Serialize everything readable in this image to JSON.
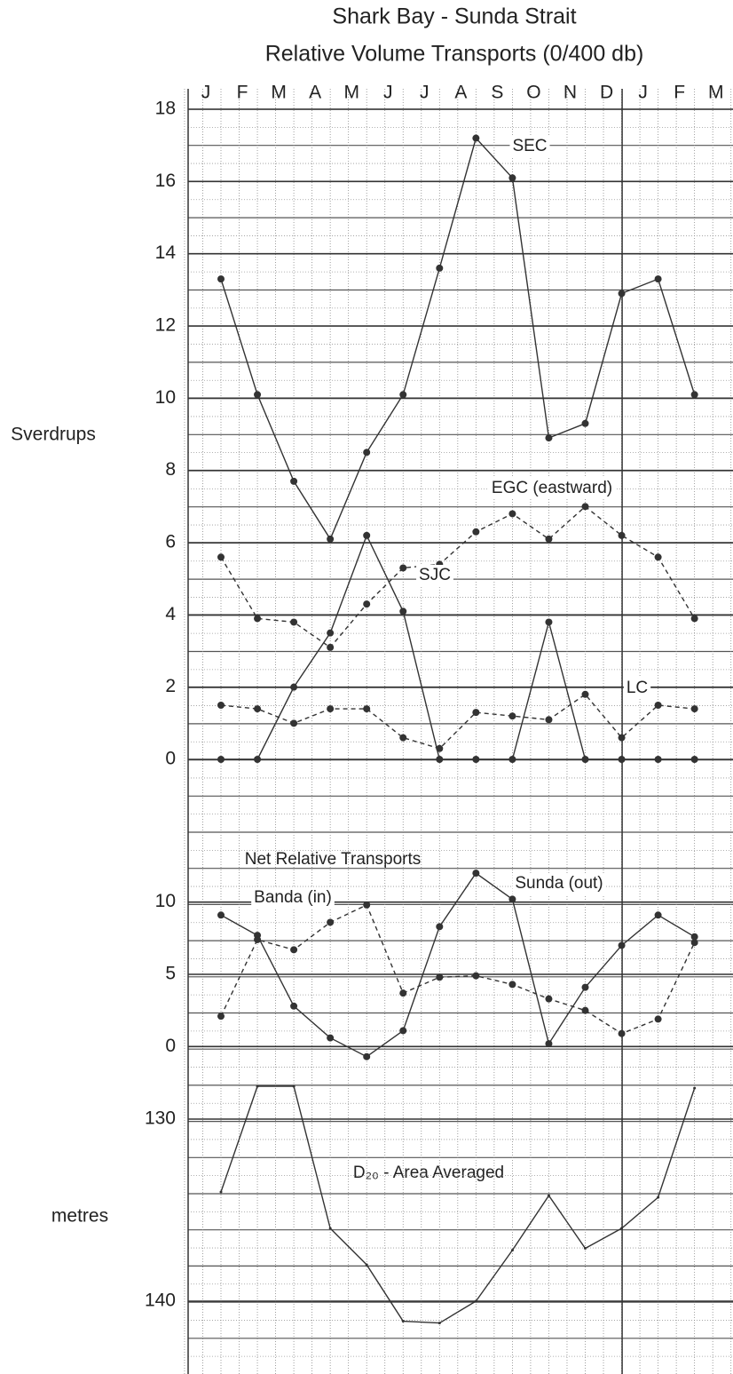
{
  "chart_data": [
    {
      "type": "line",
      "title": "Shark Bay - Sunda Strait",
      "subtitle": "Relative Volume Transports (0/400 db)",
      "y_label": "Sverdrups",
      "categories": [
        "J",
        "F",
        "M",
        "A",
        "M",
        "J",
        "J",
        "A",
        "S",
        "O",
        "N",
        "D",
        "J",
        "F",
        "M"
      ],
      "ylim": [
        -3,
        18
      ],
      "yticks": [
        0,
        2,
        4,
        6,
        8,
        10,
        12,
        14,
        16,
        18
      ],
      "grid": true,
      "series": [
        {
          "name": "SEC",
          "color": "#333333",
          "dashed": false,
          "markers": true,
          "values": [
            13.3,
            10.1,
            7.7,
            6.1,
            8.5,
            10.1,
            13.6,
            17.2,
            16.1,
            8.9,
            9.3,
            12.9,
            13.3,
            10.1,
            null
          ]
        },
        {
          "name": "EGC (eastward)",
          "color": "#333333",
          "dashed": true,
          "markers": true,
          "values": [
            5.6,
            3.9,
            3.8,
            3.1,
            4.3,
            5.3,
            5.4,
            6.3,
            6.8,
            6.1,
            7.0,
            6.2,
            5.6,
            3.9,
            null
          ]
        },
        {
          "name": "SJC",
          "color": "#333333",
          "dashed": false,
          "markers": true,
          "values": [
            0,
            0,
            2.0,
            3.5,
            6.2,
            4.1,
            0,
            0,
            0,
            3.8,
            0,
            0,
            0,
            0,
            null
          ]
        },
        {
          "name": "LC",
          "color": "#333333",
          "dashed": true,
          "markers": true,
          "values": [
            1.5,
            1.4,
            1.0,
            1.4,
            1.4,
            0.6,
            0.3,
            1.3,
            1.2,
            1.1,
            1.8,
            0.6,
            1.5,
            1.4,
            null
          ]
        }
      ]
    },
    {
      "type": "line",
      "title": "Net Relative Transports",
      "categories": [
        "J",
        "F",
        "M",
        "A",
        "M",
        "J",
        "J",
        "A",
        "S",
        "O",
        "N",
        "D",
        "J",
        "F",
        "M"
      ],
      "ylim": [
        -2.5,
        12.5
      ],
      "yticks": [
        0,
        5,
        10
      ],
      "grid": true,
      "series": [
        {
          "name": "Sunda (out)",
          "color": "#333333",
          "dashed": false,
          "markers": true,
          "values": [
            9.1,
            7.7,
            2.8,
            0.6,
            -0.7,
            1.1,
            8.3,
            12.0,
            10.2,
            0.2,
            4.1,
            7.0,
            9.1,
            7.6,
            null
          ]
        },
        {
          "name": "Banda (in)",
          "color": "#333333",
          "dashed": true,
          "markers": true,
          "values": [
            2.1,
            7.4,
            6.7,
            8.6,
            9.8,
            3.7,
            4.8,
            4.9,
            4.3,
            3.3,
            2.5,
            0.9,
            1.9,
            7.2,
            null
          ]
        }
      ]
    },
    {
      "type": "line",
      "title": "D₂₀ - Area Averaged",
      "y_label": "metres",
      "categories": [
        "J",
        "F",
        "M",
        "A",
        "M",
        "J",
        "J",
        "A",
        "S",
        "O",
        "N",
        "D",
        "J",
        "F",
        "M"
      ],
      "ylim": [
        128,
        144
      ],
      "y_inverted": true,
      "yticks": [
        130,
        140
      ],
      "grid": true,
      "series": [
        {
          "name": "D20",
          "color": "#333333",
          "dashed": false,
          "markers": false,
          "values": [
            134.0,
            128.2,
            128.2,
            136.0,
            138.0,
            141.1,
            141.2,
            140.0,
            137.2,
            134.2,
            137.1,
            136.0,
            134.3,
            128.3,
            null
          ]
        }
      ]
    }
  ]
}
